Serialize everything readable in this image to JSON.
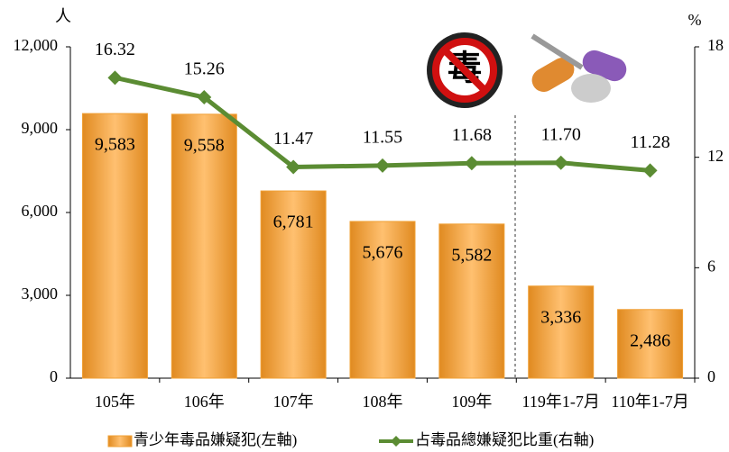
{
  "chart_data": {
    "type": "combo",
    "categories": [
      "105年",
      "106年",
      "107年",
      "108年",
      "109年",
      "119年1-7月",
      "110年1-7月"
    ],
    "y_label": "人",
    "y2_label": "%",
    "ylim": [
      0,
      12000
    ],
    "yticks": [
      0,
      {
        "value": 3000,
        "label": "3,000"
      },
      {
        "value": 6000,
        "label": "6,000"
      },
      {
        "value": 9000,
        "label": "9,000"
      },
      {
        "value": 12000,
        "label": "12,000"
      }
    ],
    "y2lim": [
      0,
      18
    ],
    "y2ticks": [
      0,
      6,
      12,
      18
    ],
    "legend": "bottom",
    "series": [
      {
        "name": "青少年毒品嫌疑犯(左軸)",
        "type": "bar",
        "color": "#f0a035",
        "values": [
          9583,
          9558,
          6781,
          5676,
          5582,
          3336,
          2486
        ],
        "value_labels": [
          "9,583",
          "9,558",
          "6,781",
          "5,676",
          "5,582",
          "3,336",
          "2,486"
        ]
      },
      {
        "name": "占毒品總嫌疑犯比重(右軸)",
        "type": "line",
        "color": "#5b8c33",
        "axis": "y2",
        "values": [
          16.32,
          15.26,
          11.47,
          11.55,
          11.68,
          11.7,
          11.28
        ],
        "value_labels": [
          "16.32",
          "15.26",
          "11.47",
          "11.55",
          "11.68",
          "11.70",
          "11.28"
        ]
      }
    ]
  }
}
